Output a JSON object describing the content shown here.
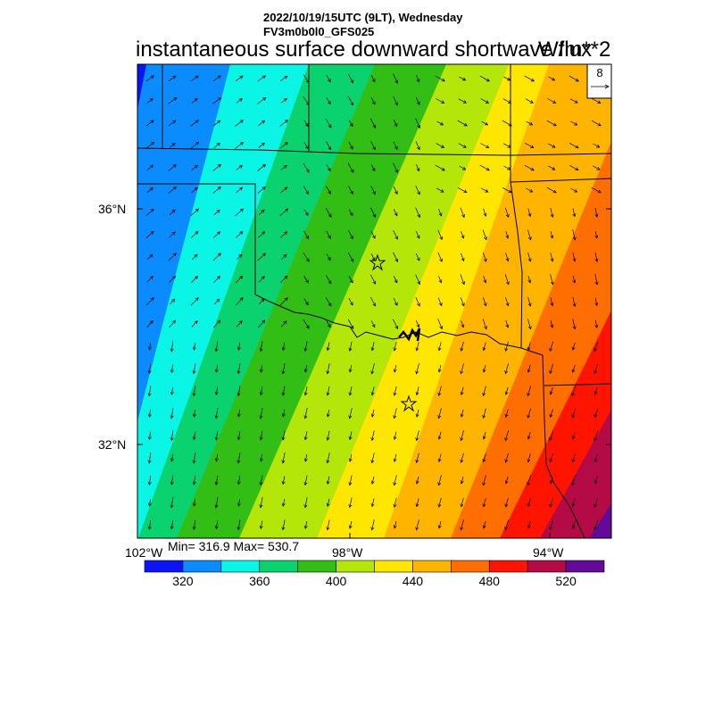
{
  "header": {
    "datetime": "2022/10/19/15UTC (9LT), Wednesday",
    "model": "FV3m0b0l0_GFS025"
  },
  "title": "instantaneous surface downward shortwave flux",
  "units": "W/m**2",
  "stats": {
    "text": "Min= 316.9 Max= 530.7"
  },
  "reference_vector": {
    "value": "8"
  },
  "axes": {
    "lat_labels": [
      "36°N",
      "32°N"
    ],
    "lon_labels": [
      "102°W",
      "98°W",
      "94°W"
    ]
  },
  "colorbar": {
    "labels": [
      "320",
      "360",
      "400",
      "440",
      "480",
      "520"
    ],
    "colors": [
      "#0a14f5",
      "#0a8cff",
      "#0af5e6",
      "#0ad26e",
      "#32be14",
      "#b4e60a",
      "#ffe600",
      "#ffb400",
      "#ff6e00",
      "#ff1400",
      "#b40a46",
      "#640a9b"
    ]
  }
}
